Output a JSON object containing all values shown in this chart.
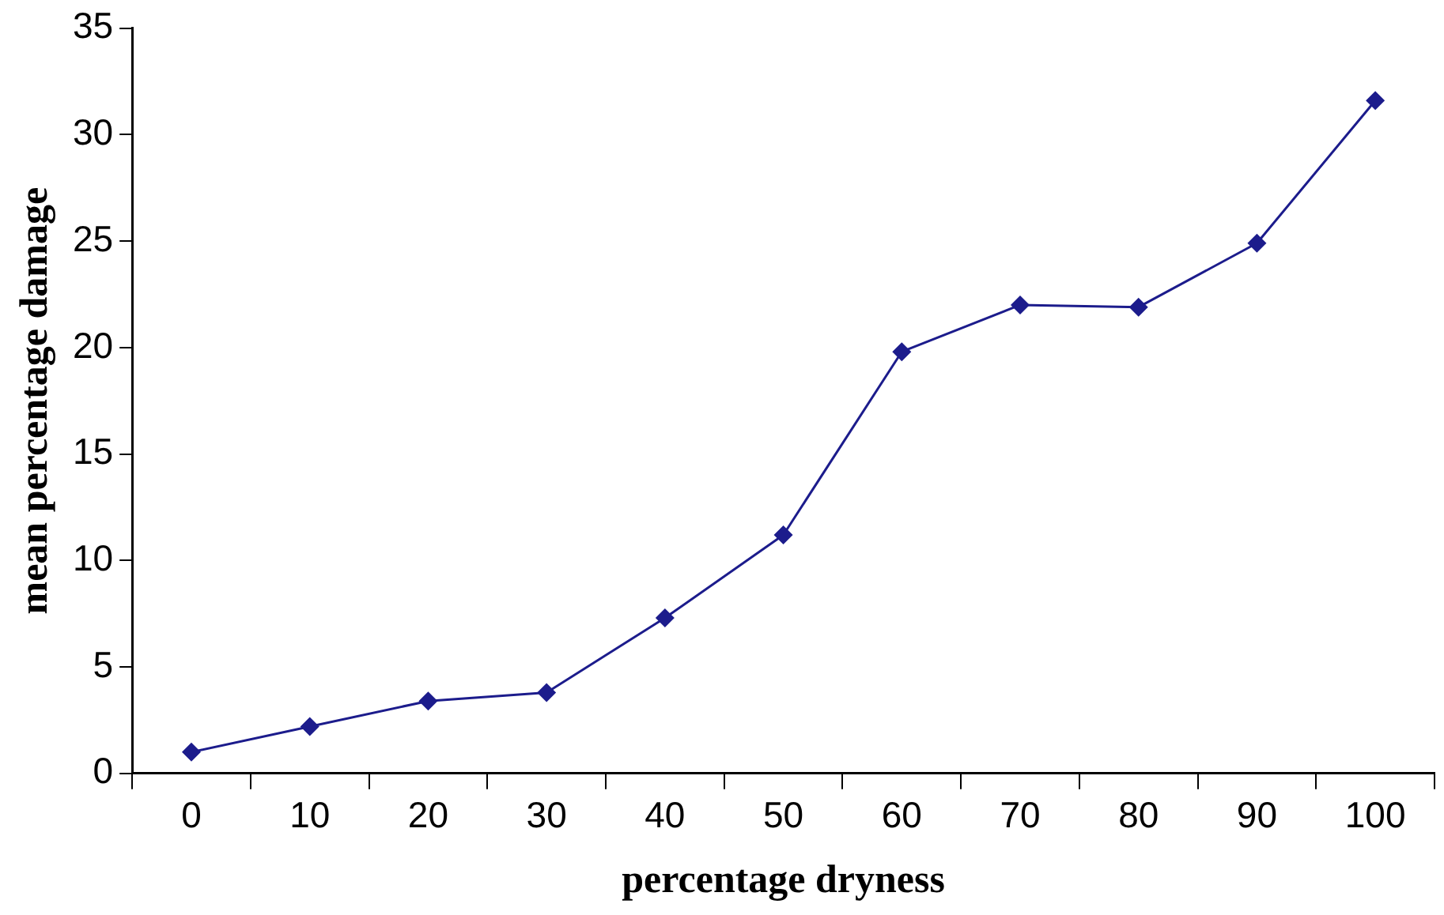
{
  "chart_data": {
    "type": "line",
    "xlabel": "percentage dryness",
    "ylabel": "mean percentage damage",
    "categories": [
      "0",
      "10",
      "20",
      "30",
      "40",
      "50",
      "60",
      "70",
      "80",
      "90",
      "100"
    ],
    "series": [
      {
        "color": "#1c1c8c",
        "values": [
          1.0,
          2.2,
          3.4,
          3.8,
          7.3,
          11.2,
          19.8,
          22.0,
          21.9,
          24.9,
          31.6
        ]
      }
    ],
    "ylim": [
      0,
      35
    ],
    "yticks": [
      0,
      5,
      10,
      15,
      20,
      25,
      30,
      35
    ],
    "grid": false,
    "legend": false,
    "marker": "diamond",
    "line_style": "solid"
  }
}
